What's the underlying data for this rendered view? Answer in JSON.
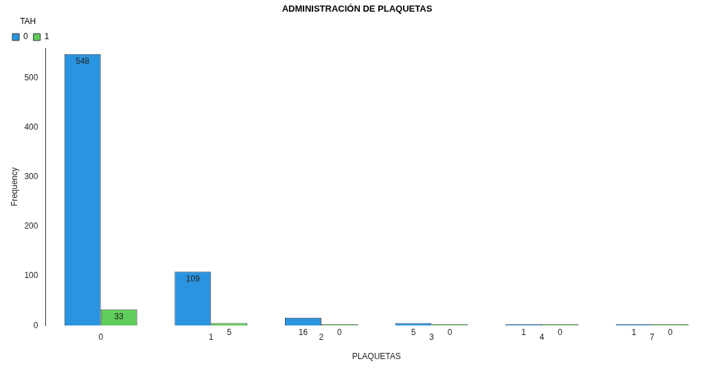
{
  "chart_data": {
    "type": "bar",
    "title": "ADMINISTRACIÓN DE PLAQUETAS",
    "xlabel": "PLAQUETAS",
    "ylabel": "Frequency",
    "legend_title": "TAH",
    "categories": [
      "0",
      "1",
      "2",
      "3",
      "4",
      "7"
    ],
    "series": [
      {
        "name": "0",
        "color": "#2b94e0",
        "values": [
          548,
          109,
          16,
          5,
          1,
          1
        ]
      },
      {
        "name": "1",
        "color": "#5fcd5a",
        "values": [
          33,
          5,
          0,
          0,
          0,
          0
        ]
      }
    ],
    "ylim": [
      0,
      560
    ],
    "yticks": [
      0,
      100,
      200,
      300,
      400,
      500
    ],
    "grid": false,
    "legend": "top left",
    "data_labels": true
  }
}
